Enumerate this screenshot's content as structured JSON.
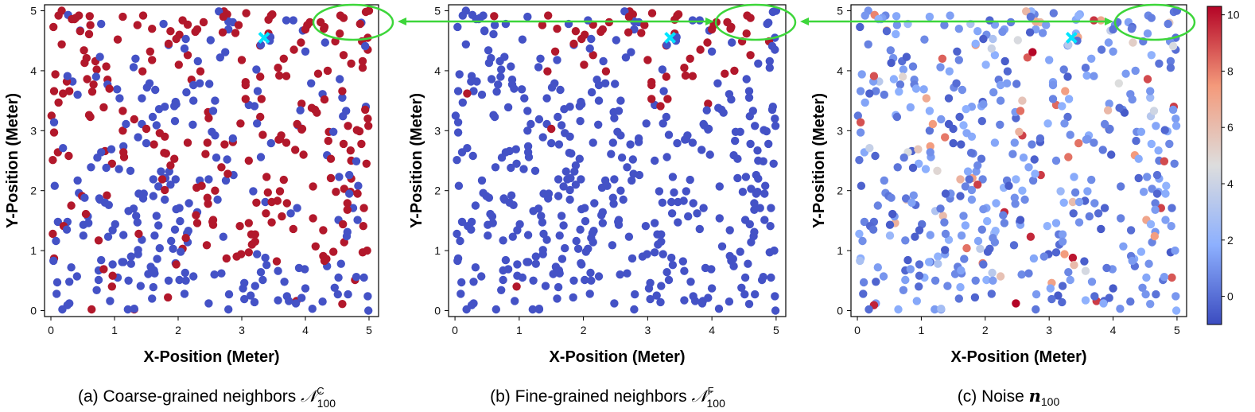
{
  "colors": {
    "red": "#b2182b",
    "blue": "#4452c6",
    "annotation": "#3dd63a",
    "marker": "#00e5ff"
  },
  "colorbar": {
    "ticks": [
      "0",
      "2",
      "4",
      "6",
      "8",
      "10"
    ],
    "range": [
      -1,
      10.3
    ],
    "colormap": "coolwarm"
  },
  "chart_data": [
    {
      "type": "scatter",
      "title": "",
      "xlabel": "X-Position (Meter)",
      "ylabel": "Y-Position (Meter)",
      "xlim": [
        -0.1,
        5.15
      ],
      "ylim": [
        -0.1,
        5.1
      ],
      "xticks": [
        "0",
        "1",
        "2",
        "3",
        "4",
        "5"
      ],
      "yticks": [
        "0",
        "1",
        "2",
        "3",
        "4",
        "5"
      ],
      "caption": "(a) Coarse-grained neighbors ",
      "caption_math": "𝒩",
      "caption_sup": "C",
      "caption_sub": "100",
      "highlight": [
        3.35,
        4.55
      ],
      "color_mode": "coarse"
    },
    {
      "type": "scatter",
      "title": "",
      "xlabel": "X-Position (Meter)",
      "ylabel": "Y-Position (Meter)",
      "xlim": [
        -0.1,
        5.15
      ],
      "ylim": [
        -0.1,
        5.1
      ],
      "xticks": [
        "0",
        "1",
        "2",
        "3",
        "4",
        "5"
      ],
      "yticks": [
        "0",
        "1",
        "2",
        "3",
        "4",
        "5"
      ],
      "caption": "(b) Fine-grained neighbors ",
      "caption_math": "𝒩",
      "caption_sup": "F",
      "caption_sub": "100",
      "highlight": [
        3.35,
        4.55
      ],
      "color_mode": "fine"
    },
    {
      "type": "scatter",
      "title": "",
      "xlabel": "X-Position (Meter)",
      "ylabel": "Y-Position (Meter)",
      "xlim": [
        -0.1,
        5.15
      ],
      "ylim": [
        -0.1,
        5.1
      ],
      "xticks": [
        "0",
        "1",
        "2",
        "3",
        "4",
        "5"
      ],
      "yticks": [
        "0",
        "1",
        "2",
        "3",
        "4",
        "5"
      ],
      "caption": "(c) Noise ",
      "caption_math": "n",
      "caption_sup": "",
      "caption_sub": "100",
      "highlight": [
        3.35,
        4.55
      ],
      "color_mode": "noise",
      "colorbar": true
    }
  ]
}
